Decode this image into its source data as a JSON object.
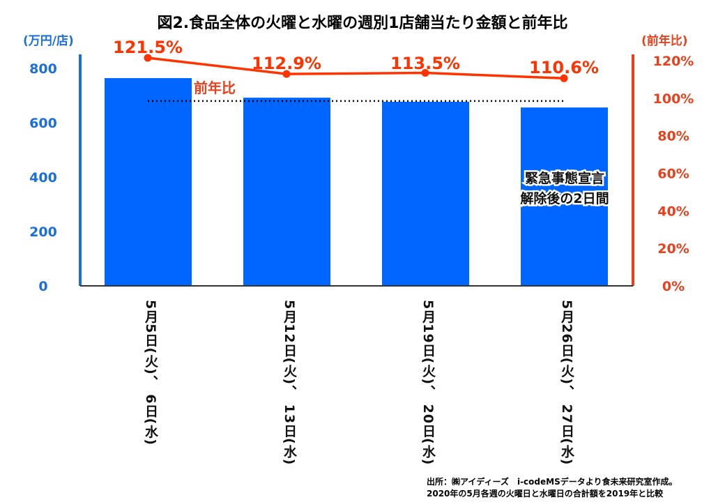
{
  "chart_data": {
    "type": "bar",
    "title": "図2.食品全体の火曜と水曜の週別1店舗当たり金額と前年比",
    "ylabel": "(万円/店)",
    "y2label": "(前年比)",
    "ylim": [
      0,
      800
    ],
    "y2lim": [
      0,
      120
    ],
    "yticks": [
      "0",
      "200",
      "400",
      "600",
      "800"
    ],
    "y2ticks": [
      "0%",
      "20%",
      "40%",
      "60%",
      "80%",
      "100%",
      "120%"
    ],
    "categories": [
      "5月5日(火)、 6日(水)",
      "5月12日(火)、 13日(水)",
      "5月19日(火)、 20日(水)",
      "5月26日(火)、 27日(水)"
    ],
    "series": [
      {
        "name": "金額",
        "type": "bar",
        "color": "#0066FF",
        "values": [
          764,
          692,
          677,
          656
        ]
      },
      {
        "name": "前年比",
        "type": "line",
        "color": "#FF3300",
        "values": [
          121.5,
          112.9,
          113.5,
          110.6
        ],
        "labels": [
          "121.5%",
          "112.9%",
          "113.5%",
          "110.6%"
        ]
      }
    ],
    "reference_line": 100,
    "annotations": {
      "series_label": "前年比",
      "note_line1": "緊急事態宣言",
      "note_line2": "解除後の2日間"
    }
  },
  "footnote": {
    "line1": "出所：㈱アイディーズ　i-codeMSデータより食未来研究室作成。",
    "line2": "2020年の5月各週の火曜日と水曜日の合計額を2019年と比較"
  }
}
